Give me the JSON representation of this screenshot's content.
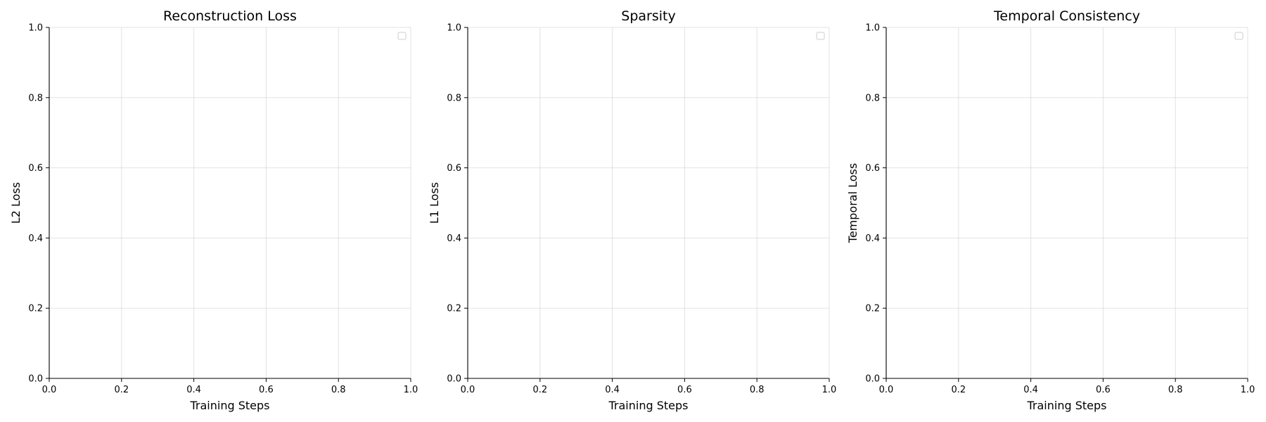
{
  "chart_data": [
    {
      "type": "line",
      "title": "Reconstruction Loss",
      "xlabel": "Training Steps",
      "ylabel": "L2 Loss",
      "xlim": [
        0.0,
        1.0
      ],
      "ylim": [
        0.0,
        1.0
      ],
      "xticks": [
        "0.0",
        "0.2",
        "0.4",
        "0.6",
        "0.8",
        "1.0"
      ],
      "yticks": [
        "0.0",
        "0.2",
        "0.4",
        "0.6",
        "0.8",
        "1.0"
      ],
      "grid": true,
      "legend": "top-right",
      "series": []
    },
    {
      "type": "line",
      "title": "Sparsity",
      "xlabel": "Training Steps",
      "ylabel": "L1 Loss",
      "xlim": [
        0.0,
        1.0
      ],
      "ylim": [
        0.0,
        1.0
      ],
      "xticks": [
        "0.0",
        "0.2",
        "0.4",
        "0.6",
        "0.8",
        "1.0"
      ],
      "yticks": [
        "0.0",
        "0.2",
        "0.4",
        "0.6",
        "0.8",
        "1.0"
      ],
      "grid": true,
      "legend": "top-right",
      "series": []
    },
    {
      "type": "line",
      "title": "Temporal Consistency",
      "xlabel": "Training Steps",
      "ylabel": "Temporal Loss",
      "xlim": [
        0.0,
        1.0
      ],
      "ylim": [
        0.0,
        1.0
      ],
      "xticks": [
        "0.0",
        "0.2",
        "0.4",
        "0.6",
        "0.8",
        "1.0"
      ],
      "yticks": [
        "0.0",
        "0.2",
        "0.4",
        "0.6",
        "0.8",
        "1.0"
      ],
      "grid": true,
      "legend": "top-right",
      "series": []
    }
  ]
}
